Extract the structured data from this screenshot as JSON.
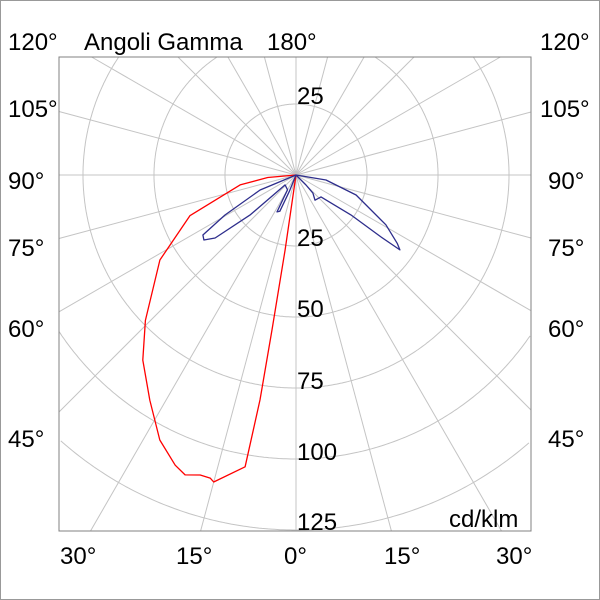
{
  "chart_data": {
    "type": "polar",
    "title": "Angoli Gamma",
    "unit": "cd/klm",
    "radial_ticks": [
      25,
      50,
      75,
      100,
      125
    ],
    "radial_labels": [
      "25",
      "25",
      "50",
      "75",
      "100",
      "125"
    ],
    "angle_step_deg": 15,
    "angle_labels": {
      "top": "180°",
      "left": [
        "120°",
        "105°",
        "90°",
        "75°",
        "60°",
        "45°"
      ],
      "right": [
        "120°",
        "105°",
        "90°",
        "75°",
        "60°",
        "45°"
      ],
      "bottom": [
        "30°",
        "15°",
        "0°",
        "15°",
        "30°"
      ]
    },
    "grid": true,
    "angle_convention": "gamma measured from downward vertical; negative = left half-plane",
    "series": [
      {
        "color": "#ff0000",
        "points": [
          [
            0,
            0
          ],
          [
            -85,
            10
          ],
          [
            -80,
            20
          ],
          [
            -69,
            40
          ],
          [
            -58,
            56.5
          ],
          [
            -46,
            73.7
          ],
          [
            -39.6,
            84.6
          ],
          [
            -33,
            94.5
          ],
          [
            -27.2,
            104.9
          ],
          [
            -22.6,
            110.7
          ],
          [
            -20.3,
            112.6
          ],
          [
            -17.7,
            110.9
          ],
          [
            -15.8,
            110.9
          ],
          [
            -15,
            111.9
          ],
          [
            -9.9,
            104.3
          ],
          [
            -9.1,
            80.2
          ],
          [
            -8.8,
            55.2
          ],
          [
            -8.3,
            26.7
          ],
          [
            0,
            0
          ]
        ]
      },
      {
        "color": "#2e2e8c",
        "points": [
          [
            0,
            0
          ],
          [
            -67.4,
            13.7
          ],
          [
            -60.6,
            28.7
          ],
          [
            -57.2,
            39
          ],
          [
            -54.8,
            39.7
          ],
          [
            -52.1,
            36.1
          ],
          [
            -49,
            21.5
          ],
          [
            -47.7,
            5.2
          ],
          [
            -30,
            6
          ],
          [
            -27.2,
            14.6
          ],
          [
            -24,
            14
          ],
          [
            -22,
            6
          ],
          [
            0,
            0
          ],
          [
            80.5,
            10.7
          ],
          [
            71.6,
            22.3
          ],
          [
            61,
            36.2
          ],
          [
            56,
            43
          ],
          [
            54.2,
            45.1
          ],
          [
            53.9,
            37
          ],
          [
            54,
            23.9
          ],
          [
            48.7,
            11.7
          ],
          [
            37,
            11.1
          ],
          [
            43,
            8.7
          ],
          [
            45,
            5
          ],
          [
            0,
            0
          ]
        ]
      }
    ]
  }
}
